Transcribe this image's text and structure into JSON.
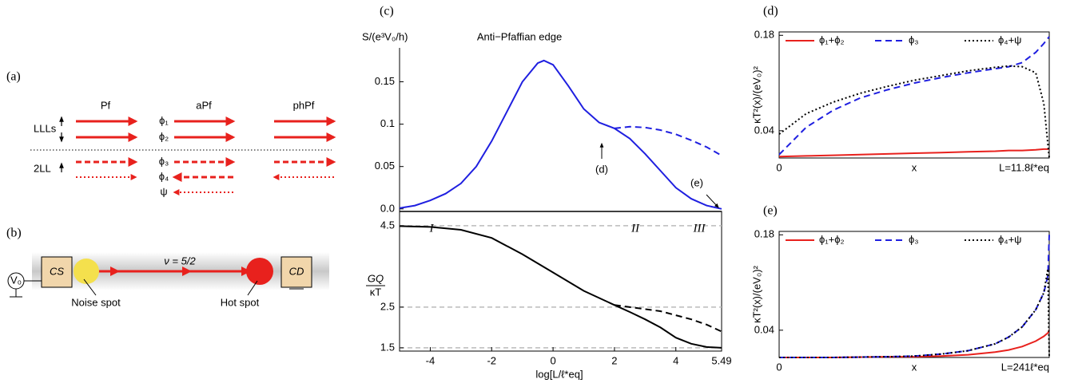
{
  "diagram_a": {
    "panel_label": "(a)",
    "columns": [
      "Pf",
      "aPf",
      "phPf"
    ],
    "rows": [
      "LLLs",
      "2LL"
    ],
    "fields": [
      "ϕ₁",
      "ϕ₂",
      "ϕ₃",
      "ϕ₄",
      "ψ"
    ]
  },
  "diagram_b": {
    "panel_label": "(b)",
    "filling": "ν = 5/2",
    "voltage": "V₀",
    "source_contact": "CS",
    "drain_contact": "CD",
    "noise_spot": "Noise spot",
    "hot_spot": "Hot spot"
  },
  "chart_data": [
    {
      "type": "line",
      "panel_label": "(c)",
      "title": "Anti−Pfaffian edge",
      "y_label": "S/(e³V₀/h)",
      "x": [
        -5,
        -4.5,
        -4,
        -3.5,
        -3,
        -2.5,
        -2,
        -1.5,
        -1,
        -0.5,
        -0.3,
        0,
        0.5,
        1,
        1.5,
        2,
        2.5,
        3,
        3.5,
        4,
        4.5,
        5,
        5.49
      ],
      "series": [
        {
          "color": "#1f1fe0",
          "dash": "solid",
          "values": [
            0.001,
            0.004,
            0.01,
            0.018,
            0.03,
            0.05,
            0.08,
            0.115,
            0.15,
            0.172,
            0.175,
            0.17,
            0.145,
            0.118,
            0.102,
            0.095,
            0.083,
            0.065,
            0.045,
            0.025,
            0.012,
            0.004,
            0.0
          ]
        },
        {
          "color": "#1f1fe0",
          "dash": "dashed",
          "values": [
            null,
            null,
            null,
            null,
            null,
            null,
            null,
            null,
            null,
            null,
            null,
            null,
            null,
            null,
            null,
            0.095,
            0.097,
            0.096,
            0.093,
            0.088,
            0.081,
            0.073,
            0.063
          ]
        }
      ],
      "xlim": [
        -5,
        5.49
      ],
      "ylim": [
        -0.003,
        0.19
      ],
      "yticks": [
        {
          "value": 0,
          "label": "0.0"
        },
        0.05,
        0.1,
        0.15
      ],
      "annotations": [
        "(d)",
        "(e)"
      ]
    },
    {
      "type": "line",
      "x_label": "log[L/ℓ*eq]",
      "y_label_numerator": "GQ",
      "y_label_denominator": "κT",
      "x": [
        -5,
        -4,
        -3,
        -2,
        -1,
        0,
        1,
        2,
        2.5,
        3,
        3.5,
        4,
        4.5,
        5,
        5.49
      ],
      "series": [
        {
          "color": "#000000",
          "dash": "solid",
          "values": [
            4.49,
            4.47,
            4.4,
            4.2,
            3.8,
            3.35,
            2.9,
            2.55,
            2.38,
            2.2,
            2.0,
            1.75,
            1.6,
            1.52,
            1.5
          ]
        },
        {
          "color": "#000000",
          "dash": "dashed",
          "values": [
            null,
            null,
            null,
            null,
            null,
            null,
            null,
            2.55,
            2.5,
            2.45,
            2.4,
            2.3,
            2.2,
            2.07,
            1.9
          ]
        }
      ],
      "xlim": [
        -5,
        5.49
      ],
      "ylim": [
        1.42,
        4.85
      ],
      "xticks": [
        -4,
        -2,
        0,
        2,
        4,
        5.49
      ],
      "yticks": [
        1.5,
        2.5,
        4.5
      ],
      "grid": true,
      "annotations": [
        "I",
        "II",
        "III"
      ]
    },
    {
      "type": "line",
      "panel_label": "(d)",
      "x_label": "x",
      "y_label": "κT²(x)/(eV₀)²",
      "legend": "top",
      "x": [
        0,
        0.1,
        0.2,
        0.3,
        0.4,
        0.5,
        0.6,
        0.7,
        0.8,
        0.85,
        0.9,
        0.95,
        0.98,
        1.0
      ],
      "series": [
        {
          "name": "ϕ₁+ϕ₂",
          "color": "#e8211d",
          "dash": "solid",
          "values": [
            0.002,
            0.003,
            0.004,
            0.005,
            0.006,
            0.007,
            0.008,
            0.009,
            0.01,
            0.011,
            0.011,
            0.012,
            0.013,
            0.013
          ]
        },
        {
          "name": "ϕ₃",
          "color": "#1f1fe0",
          "dash": "dashed",
          "values": [
            0.005,
            0.045,
            0.07,
            0.088,
            0.1,
            0.11,
            0.118,
            0.125,
            0.131,
            0.134,
            0.14,
            0.155,
            0.168,
            0.178
          ]
        },
        {
          "name": "ϕ₄+ψ",
          "color": "#000000",
          "dash": "dotted",
          "values": [
            0.035,
            0.065,
            0.082,
            0.095,
            0.105,
            0.114,
            0.121,
            0.128,
            0.133,
            0.135,
            0.134,
            0.125,
            0.08,
            0.0
          ]
        }
      ],
      "xlim": [
        0,
        1
      ],
      "ylim": [
        0,
        0.185
      ],
      "xticks": [
        0,
        {
          "value": 1,
          "label": "L=11.8ℓ*eq"
        }
      ],
      "yticks": [
        0.04,
        0.18
      ]
    },
    {
      "type": "line",
      "panel_label": "(e)",
      "x_label": "x",
      "y_label": "κT²(x)/(eV₀)²",
      "legend": "top",
      "x": [
        0,
        0.2,
        0.4,
        0.5,
        0.6,
        0.7,
        0.8,
        0.85,
        0.9,
        0.95,
        0.98,
        0.995,
        1.0
      ],
      "series": [
        {
          "name": "ϕ₁+ϕ₂",
          "color": "#e8211d",
          "dash": "solid",
          "values": [
            0.0,
            0.0,
            0.001,
            0.001,
            0.002,
            0.004,
            0.008,
            0.011,
            0.016,
            0.024,
            0.031,
            0.036,
            0.04
          ]
        },
        {
          "name": "ϕ₃",
          "color": "#1f1fe0",
          "dash": "dashed",
          "values": [
            0.0,
            0.0,
            0.001,
            0.002,
            0.005,
            0.01,
            0.02,
            0.03,
            0.045,
            0.07,
            0.095,
            0.12,
            0.18
          ]
        },
        {
          "name": "ϕ₄+ψ",
          "color": "#000000",
          "dash": "dotted",
          "values": [
            0.0,
            0.0,
            0.001,
            0.002,
            0.005,
            0.01,
            0.02,
            0.03,
            0.045,
            0.07,
            0.095,
            0.13,
            0.0
          ]
        }
      ],
      "xlim": [
        0,
        1
      ],
      "ylim": [
        0,
        0.185
      ],
      "xticks": [
        0,
        {
          "value": 1,
          "label": "L=241ℓ*eq"
        }
      ],
      "yticks": [
        0.04,
        0.18
      ]
    }
  ]
}
